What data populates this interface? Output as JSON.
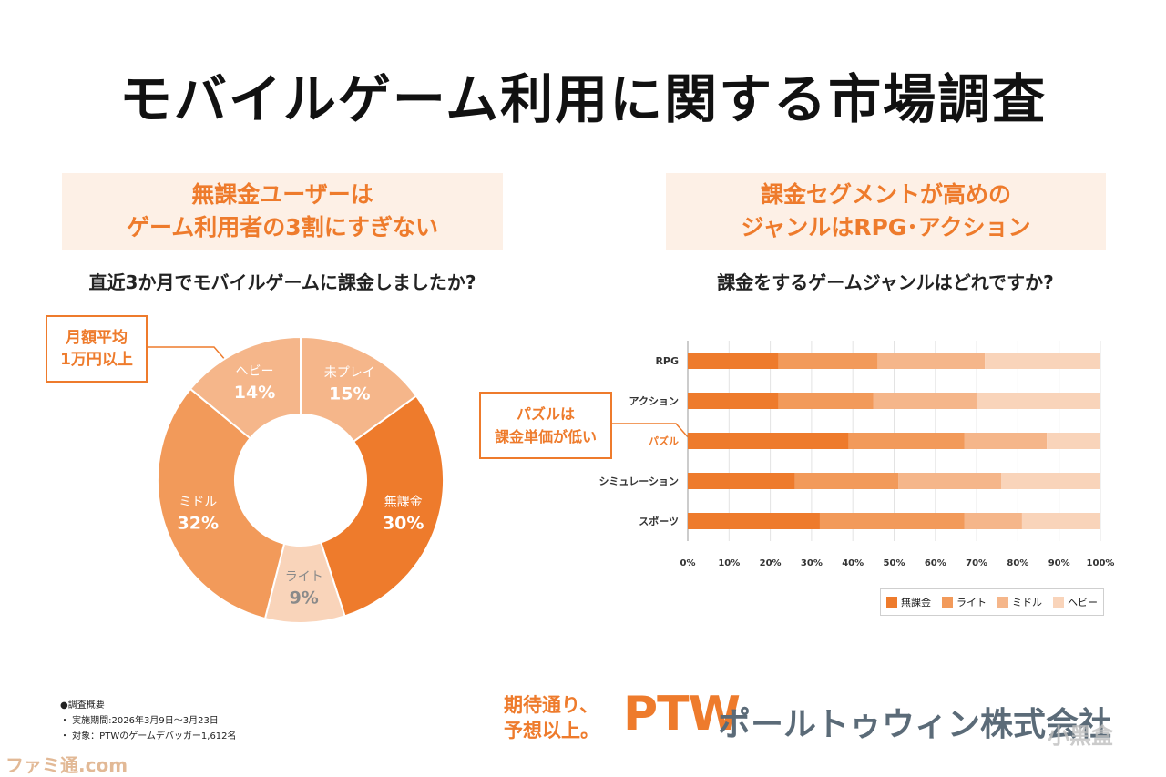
{
  "title": "モバイルゲーム利用に関する市場調査",
  "left": {
    "banner_line1": "無課金ユーザーは",
    "banner_line2": "ゲーム利用者の3割にすぎない",
    "question": "直近3か月でモバイルゲームに課金しましたか?",
    "callout_line1": "月額平均",
    "callout_line2": "1万円以上"
  },
  "right": {
    "banner_line1": "課金セグメントが高めの",
    "banner_line2": "ジャンルはRPG･アクション",
    "question": "課金をするゲームジャンルはどれですか?",
    "callout_line1": "パズルは",
    "callout_line2": "課金単価が低い"
  },
  "colors": {
    "accent": "#ee7b2c",
    "muryo": "#ee7b2c",
    "light": "#f29a5a",
    "middle": "#f5b68a",
    "heavy": "#f9d4ba",
    "mipurei": "#f5b68a"
  },
  "chart_data": [
    {
      "type": "pie",
      "style": "donut",
      "slices": [
        {
          "label": "未プレイ",
          "value": 15,
          "display": "15%"
        },
        {
          "label": "無課金",
          "value": 30,
          "display": "30%"
        },
        {
          "label": "ライト",
          "value": 9,
          "display": "9%"
        },
        {
          "label": "ミドル",
          "value": 32,
          "display": "32%"
        },
        {
          "label": "ヘビー",
          "value": 14,
          "display": "14%"
        }
      ]
    },
    {
      "type": "bar",
      "orientation": "horizontal",
      "stacked": true,
      "categories": [
        "RPG",
        "アクション",
        "パズル",
        "シミュレーション",
        "スポーツ"
      ],
      "series": [
        {
          "name": "無課金",
          "values": [
            22,
            22,
            39,
            26,
            32
          ]
        },
        {
          "name": "ライト",
          "values": [
            24,
            23,
            28,
            25,
            35
          ]
        },
        {
          "name": "ミドル",
          "values": [
            26,
            25,
            20,
            25,
            14
          ]
        },
        {
          "name": "ヘビー",
          "values": [
            28,
            30,
            13,
            24,
            19
          ]
        }
      ],
      "xlim": [
        0,
        100
      ],
      "x_ticks": [
        "0%",
        "10%",
        "20%",
        "30%",
        "40%",
        "50%",
        "60%",
        "70%",
        "80%",
        "90%",
        "100%"
      ],
      "legend_position": "bottom-right",
      "highlight_category": "パズル"
    }
  ],
  "survey": {
    "heading": "●調査概要",
    "line1": "・ 実施期間:2026年3月9日〜3月23日",
    "line2": "・ 対象：PTWのゲームデバッガー1,612名"
  },
  "footer": {
    "tagline_line1": "期待通り、",
    "tagline_line2": "予想以上。",
    "logo": "PTW",
    "company": "ポールトゥウィン株式会社"
  },
  "watermarks": {
    "left": "ファミ通.com",
    "right": "小黑盒"
  }
}
